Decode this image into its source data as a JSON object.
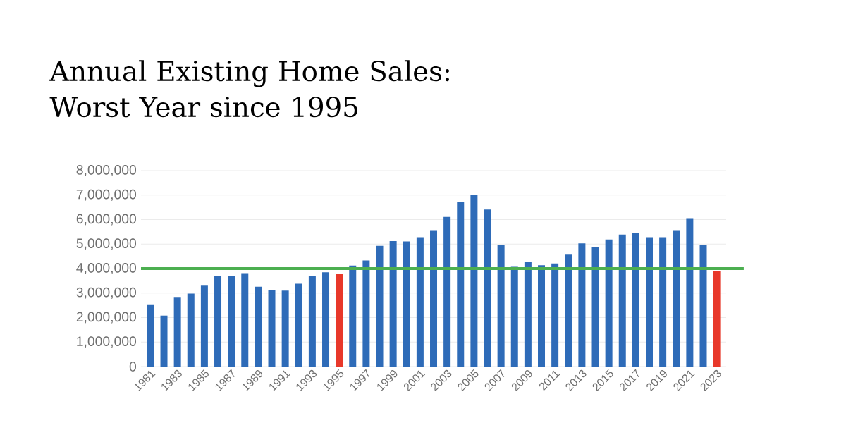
{
  "chart_data": {
    "type": "bar",
    "title": "Annual Existing Home Sales: Worst Year since 1995",
    "categories": [
      "1981",
      null,
      "1983",
      null,
      "1985",
      null,
      "1987",
      null,
      "1989",
      null,
      "1991",
      null,
      "1993",
      null,
      "1995",
      null,
      "1997",
      null,
      "1999",
      null,
      "2001",
      null,
      "2003",
      null,
      "2005",
      null,
      "2007",
      null,
      "2009",
      null,
      "2011",
      null,
      "2013",
      null,
      "2015",
      null,
      "2017",
      null,
      "2019",
      null,
      "2021",
      null,
      "2023"
    ],
    "values": [
      2540000,
      2080000,
      2840000,
      2980000,
      3330000,
      3710000,
      3710000,
      3810000,
      3260000,
      3130000,
      3100000,
      3380000,
      3680000,
      3850000,
      3790000,
      4120000,
      4330000,
      4930000,
      5120000,
      5110000,
      5280000,
      5570000,
      6110000,
      6710000,
      7020000,
      6410000,
      4970000,
      4070000,
      4280000,
      4140000,
      4210000,
      4600000,
      5030000,
      4890000,
      5190000,
      5390000,
      5450000,
      5280000,
      5280000,
      5570000,
      6060000,
      4970000,
      3890000
    ],
    "colors": [
      "#2e6bb8",
      "#2e6bb8",
      "#2e6bb8",
      "#2e6bb8",
      "#2e6bb8",
      "#2e6bb8",
      "#2e6bb8",
      "#2e6bb8",
      "#2e6bb8",
      "#2e6bb8",
      "#2e6bb8",
      "#2e6bb8",
      "#2e6bb8",
      "#2e6bb8",
      "#e8382a",
      "#2e6bb8",
      "#2e6bb8",
      "#2e6bb8",
      "#2e6bb8",
      "#2e6bb8",
      "#2e6bb8",
      "#2e6bb8",
      "#2e6bb8",
      "#2e6bb8",
      "#2e6bb8",
      "#2e6bb8",
      "#2e6bb8",
      "#2e6bb8",
      "#2e6bb8",
      "#2e6bb8",
      "#2e6bb8",
      "#2e6bb8",
      "#2e6bb8",
      "#2e6bb8",
      "#2e6bb8",
      "#2e6bb8",
      "#2e6bb8",
      "#2e6bb8",
      "#2e6bb8",
      "#2e6bb8",
      "#2e6bb8",
      "#2e6bb8",
      "#e8382a"
    ],
    "ylim": [
      0,
      8000000
    ],
    "yticks": [
      {
        "value": 0,
        "label": "0"
      },
      {
        "value": 1000000,
        "label": "1,000,000"
      },
      {
        "value": 2000000,
        "label": "2,000,000"
      },
      {
        "value": 3000000,
        "label": "3,000,000"
      },
      {
        "value": 4000000,
        "label": "4,000,000"
      },
      {
        "value": 5000000,
        "label": "5,000,000"
      },
      {
        "value": 6000000,
        "label": "6,000,000"
      },
      {
        "value": 7000000,
        "label": "7,000,000"
      },
      {
        "value": 8000000,
        "label": "8,000,000"
      }
    ],
    "ref_lines": [
      {
        "axis": "y",
        "value": 4000000,
        "color": "#4caf50"
      }
    ],
    "grid": "y"
  }
}
